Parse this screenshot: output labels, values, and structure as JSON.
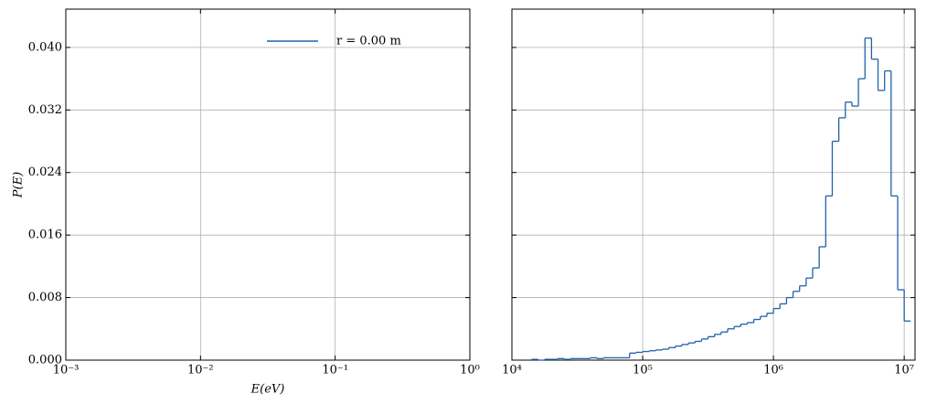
{
  "chart_data": [
    {
      "type": "empty",
      "ylabel": "P(E)",
      "xlabel": "E(eV)",
      "log_x": true,
      "grid": true,
      "legend": {
        "position": "upper right",
        "entries": [
          {
            "name": "r = 0.00 m",
            "color": "#1f62a8"
          }
        ]
      },
      "xlim": [
        0.001,
        1
      ],
      "xticks": [
        {
          "value": 0.001,
          "label": "10⁻³"
        },
        {
          "value": 0.01,
          "label": "10⁻²"
        },
        {
          "value": 0.1,
          "label": "10⁻¹"
        },
        {
          "value": 1,
          "label": "10⁰"
        }
      ],
      "ylim": [
        0,
        0.0449
      ],
      "yticks": [
        {
          "value": 0,
          "label": "0.000"
        },
        0.008,
        0.016,
        0.024,
        0.032,
        {
          "value": 0.04,
          "label": "0.040"
        }
      ],
      "ytick_labels": true
    },
    {
      "type": "step_histogram",
      "log_x": true,
      "grid": true,
      "color": "#1f62a8",
      "xlim": [
        10000,
        12100000
      ],
      "xticks": [
        {
          "value": 10000,
          "label": "10⁴"
        },
        {
          "value": 100000,
          "label": "10⁵"
        },
        {
          "value": 1000000,
          "label": "10⁶"
        },
        {
          "value": 10000000,
          "label": "10⁷"
        }
      ],
      "ylim": [
        0,
        0.0449
      ],
      "yticks": [
        0,
        0.008,
        0.016,
        0.024,
        0.032,
        0.04
      ],
      "ytick_labels": false,
      "bins": [
        14130,
        15850,
        17780,
        19950,
        22390,
        25120,
        28180,
        31620,
        35480,
        39810,
        44670,
        50120,
        56230,
        63100,
        70790,
        79430,
        89130,
        100000,
        112200,
        125900,
        141300,
        158500,
        177800,
        199500,
        223900,
        251200,
        281800,
        316200,
        354800,
        398100,
        446700,
        501200,
        562300,
        631000,
        707900,
        794300,
        891300,
        1000000,
        1122000,
        1259000,
        1413000,
        1585000,
        1778000,
        1995000,
        2239000,
        2512000,
        2818000,
        3162000,
        3548000,
        3981000,
        4467000,
        5012000,
        5623000,
        6310000,
        7079000,
        7943000,
        8913000,
        10000000,
        11220000
      ],
      "values": [
        0.0001,
        0,
        0.0001,
        0.0001,
        0.0002,
        0.0001,
        0.0002,
        0.0002,
        0.0002,
        0.0003,
        0.0002,
        0.0003,
        0.0003,
        0.0003,
        0.0003,
        0.0009,
        0.001,
        0.0011,
        0.0012,
        0.0013,
        0.0014,
        0.0016,
        0.0018,
        0.002,
        0.0022,
        0.0024,
        0.0027,
        0.003,
        0.0033,
        0.0036,
        0.004,
        0.0043,
        0.0046,
        0.0048,
        0.0052,
        0.0056,
        0.006,
        0.0066,
        0.0072,
        0.008,
        0.0088,
        0.0095,
        0.0105,
        0.0118,
        0.0145,
        0.021,
        0.028,
        0.031,
        0.033,
        0.0325,
        0.036,
        0.0412,
        0.0385,
        0.0345,
        0.037,
        0.021,
        0.009,
        0.005
      ]
    }
  ]
}
